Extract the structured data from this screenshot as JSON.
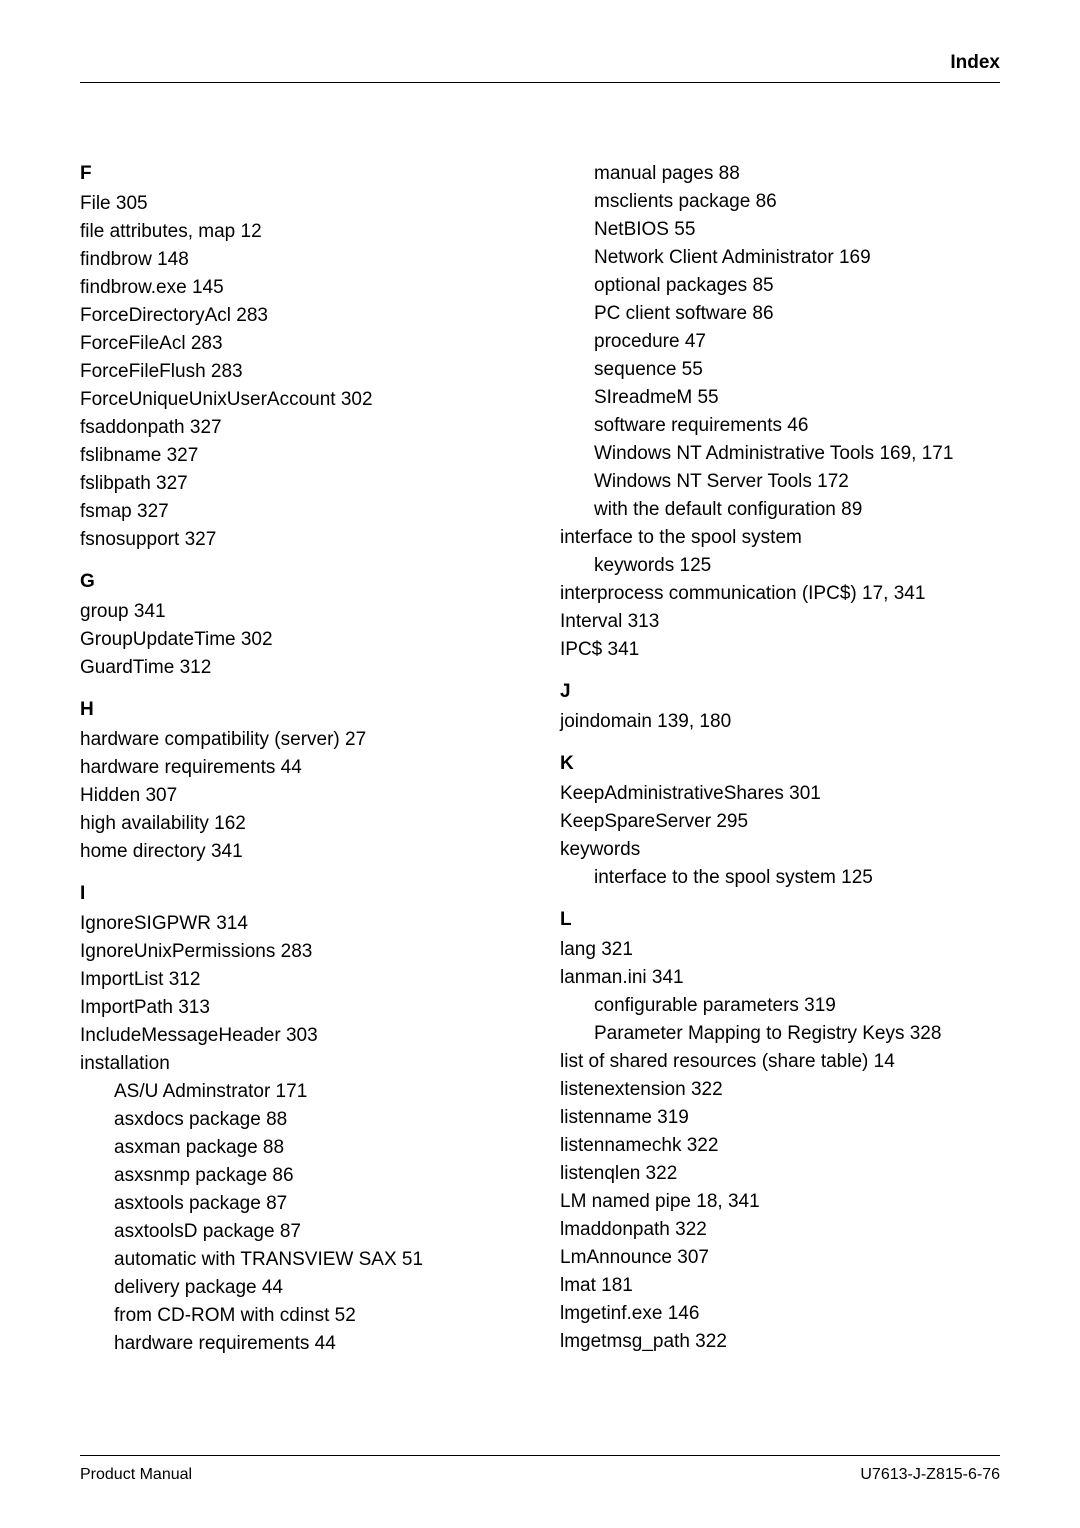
{
  "header": {
    "label": "Index"
  },
  "footer": {
    "left": "Product Manual",
    "right": "U7613-J-Z815-6-76"
  },
  "left_col": [
    {
      "type": "head",
      "text": "F",
      "first": true
    },
    {
      "type": "entry",
      "text": "File   305"
    },
    {
      "type": "entry",
      "text": "file attributes, map   12"
    },
    {
      "type": "entry",
      "text": "findbrow   148"
    },
    {
      "type": "entry",
      "text": "findbrow.exe   145"
    },
    {
      "type": "entry",
      "text": "ForceDirectoryAcl   283"
    },
    {
      "type": "entry",
      "text": "ForceFileAcl   283"
    },
    {
      "type": "entry",
      "text": "ForceFileFlush   283"
    },
    {
      "type": "entry",
      "text": "ForceUniqueUnixUserAccount   302"
    },
    {
      "type": "entry",
      "text": "fsaddonpath   327"
    },
    {
      "type": "entry",
      "text": "fslibname   327"
    },
    {
      "type": "entry",
      "text": "fslibpath   327"
    },
    {
      "type": "entry",
      "text": "fsmap   327"
    },
    {
      "type": "entry",
      "text": "fsnosupport   327"
    },
    {
      "type": "head",
      "text": "G"
    },
    {
      "type": "entry",
      "text": "group   341"
    },
    {
      "type": "entry",
      "text": "GroupUpdateTime   302"
    },
    {
      "type": "entry",
      "text": "GuardTime   312"
    },
    {
      "type": "head",
      "text": "H"
    },
    {
      "type": "entry",
      "text": "hardware compatibility (server)   27"
    },
    {
      "type": "entry",
      "text": "hardware requirements   44"
    },
    {
      "type": "entry",
      "text": "Hidden   307"
    },
    {
      "type": "entry",
      "text": "high availability   162"
    },
    {
      "type": "entry",
      "text": "home directory   341"
    },
    {
      "type": "head",
      "text": "I"
    },
    {
      "type": "entry",
      "text": "IgnoreSIGPWR   314"
    },
    {
      "type": "entry",
      "text": "IgnoreUnixPermissions   283"
    },
    {
      "type": "entry",
      "text": "ImportList   312"
    },
    {
      "type": "entry",
      "text": "ImportPath   313"
    },
    {
      "type": "entry",
      "text": "IncludeMessageHeader   303"
    },
    {
      "type": "entry",
      "text": "installation"
    },
    {
      "type": "sub1",
      "text": "AS/U Adminstrator   171"
    },
    {
      "type": "sub1",
      "text": "asxdocs package   88"
    },
    {
      "type": "sub1",
      "text": "asxman package   88"
    },
    {
      "type": "sub1",
      "text": "asxsnmp package   86"
    },
    {
      "type": "sub1",
      "text": "asxtools package   87"
    },
    {
      "type": "sub1",
      "text": "asxtoolsD package   87"
    },
    {
      "type": "sub1",
      "text": "automatic with TRANSVIEW SAX   51"
    },
    {
      "type": "sub1",
      "text": "delivery package   44"
    },
    {
      "type": "sub1",
      "text": "from CD-ROM with cdinst   52"
    },
    {
      "type": "sub1",
      "text": "hardware requirements   44"
    }
  ],
  "right_col": [
    {
      "type": "sub1",
      "text": "manual pages   88"
    },
    {
      "type": "sub1",
      "text": "msclients package   86"
    },
    {
      "type": "sub1",
      "text": "NetBIOS   55"
    },
    {
      "type": "sub1",
      "text": "Network Client Administrator   169"
    },
    {
      "type": "sub1",
      "text": "optional packages   85"
    },
    {
      "type": "sub1",
      "text": "PC client software   86"
    },
    {
      "type": "sub1",
      "text": "procedure   47"
    },
    {
      "type": "sub1",
      "text": "sequence   55"
    },
    {
      "type": "sub1",
      "text": "SIreadmeM   55"
    },
    {
      "type": "sub1",
      "text": "software requirements   46"
    },
    {
      "type": "sub1",
      "text": "Windows NT Administrative Tools   169, 171"
    },
    {
      "type": "sub1",
      "text": "Windows NT Server Tools   172"
    },
    {
      "type": "sub1",
      "text": "with the default configuration   89"
    },
    {
      "type": "entry",
      "text": "interface to the spool system"
    },
    {
      "type": "sub1",
      "text": "keywords   125"
    },
    {
      "type": "entry",
      "text": "interprocess communication (IPC$)   17, 341"
    },
    {
      "type": "entry",
      "text": "Interval   313"
    },
    {
      "type": "entry",
      "text": "IPC$   341"
    },
    {
      "type": "head",
      "text": "J"
    },
    {
      "type": "entry",
      "text": "joindomain   139, 180"
    },
    {
      "type": "head",
      "text": "K"
    },
    {
      "type": "entry",
      "text": "KeepAdministrativeShares   301"
    },
    {
      "type": "entry",
      "text": "KeepSpareServer   295"
    },
    {
      "type": "entry",
      "text": "keywords"
    },
    {
      "type": "sub1",
      "text": "interface to the spool system   125"
    },
    {
      "type": "head",
      "text": "L"
    },
    {
      "type": "entry",
      "text": "lang   321"
    },
    {
      "type": "entry",
      "text": "lanman.ini   341"
    },
    {
      "type": "sub1",
      "text": "configurable parameters   319"
    },
    {
      "type": "sub1",
      "text": "Parameter Mapping to Registry Keys   328"
    },
    {
      "type": "entry",
      "text": "list of shared resources (share table)   14"
    },
    {
      "type": "entry",
      "text": "listenextension   322"
    },
    {
      "type": "entry",
      "text": "listenname   319"
    },
    {
      "type": "entry",
      "text": "listennamechk   322"
    },
    {
      "type": "entry",
      "text": "listenqlen   322"
    },
    {
      "type": "entry",
      "text": "LM named pipe   18, 341"
    },
    {
      "type": "entry",
      "text": "lmaddonpath   322"
    },
    {
      "type": "entry",
      "text": "LmAnnounce   307"
    },
    {
      "type": "entry",
      "text": "lmat   181"
    },
    {
      "type": "entry",
      "text": "lmgetinf.exe   146"
    },
    {
      "type": "entry",
      "text": "lmgetmsg_path   322"
    }
  ]
}
